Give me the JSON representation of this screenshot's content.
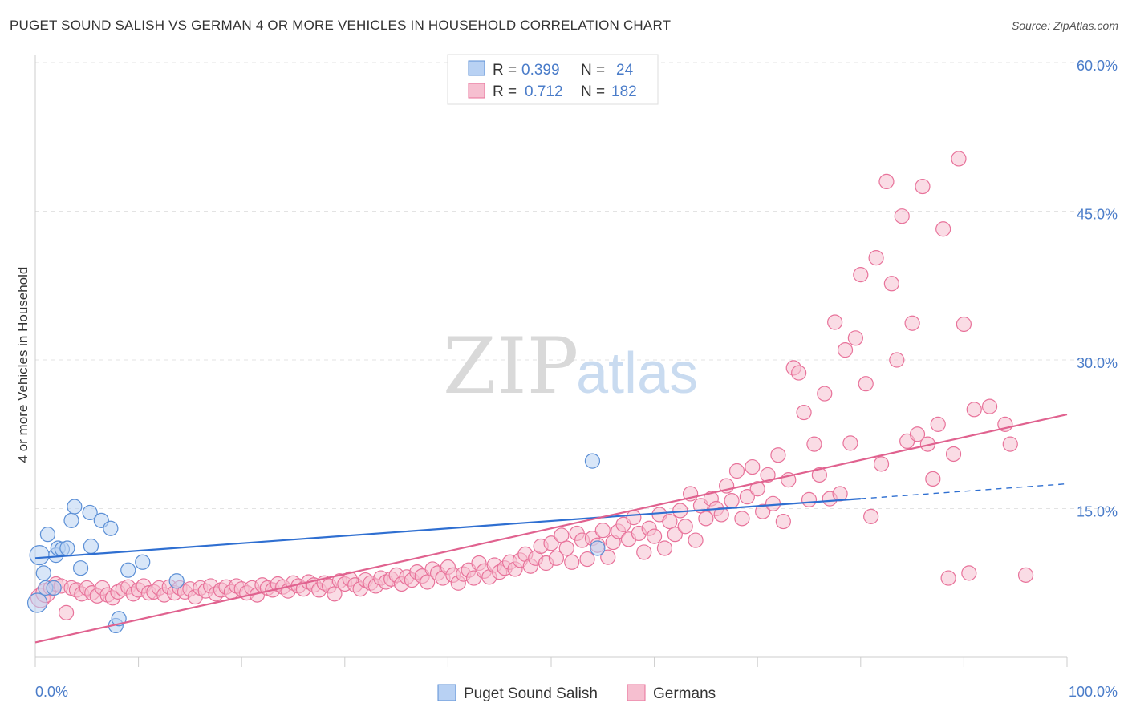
{
  "title": "PUGET SOUND SALISH VS GERMAN 4 OR MORE VEHICLES IN HOUSEHOLD CORRELATION CHART",
  "source": "Source: ZipAtlas.com",
  "watermark": {
    "zip": "ZIP",
    "atlas": "atlas"
  },
  "colors": {
    "blue": "#5b8fd6",
    "blue_fill": "#b8d1f3",
    "pink": "#e8729a",
    "pink_fill": "#f6bfd0",
    "blue_line": "#2f6fd1",
    "pink_line": "#e0628f"
  },
  "legend": {
    "rows": [
      {
        "r_label": "R =",
        "r_value": "0.399",
        "n_label": "N =",
        "n_value": "24"
      },
      {
        "r_label": "R =",
        "r_value": "0.712",
        "n_label": "N =",
        "n_value": "182"
      }
    ]
  },
  "chart_data": {
    "type": "scatter",
    "ylabel": "4 or more Vehicles in Household",
    "xlim": [
      0,
      100
    ],
    "ylim": [
      0,
      60
    ],
    "y_ticks": [
      15,
      30,
      45,
      60
    ],
    "y_tick_labels": [
      "15.0%",
      "30.0%",
      "45.0%",
      "60.0%"
    ],
    "x_tick_labels": [
      "0.0%",
      "100.0%"
    ],
    "series": [
      {
        "name": "Puget Sound Salish",
        "trend": {
          "x0": 0,
          "y0": 10.0,
          "x1": 80,
          "y1": 16.0,
          "dash_to_x": 100,
          "dash_to_y": 17.5
        },
        "points": [
          [
            0.2,
            5.5
          ],
          [
            0.4,
            10.3
          ],
          [
            0.8,
            8.5
          ],
          [
            1.0,
            7.0
          ],
          [
            1.2,
            12.4
          ],
          [
            1.8,
            7.0
          ],
          [
            2.0,
            10.3
          ],
          [
            2.2,
            11.0
          ],
          [
            2.6,
            10.9
          ],
          [
            3.1,
            11.0
          ],
          [
            3.5,
            13.8
          ],
          [
            3.8,
            15.2
          ],
          [
            4.4,
            9.0
          ],
          [
            5.3,
            14.6
          ],
          [
            5.4,
            11.2
          ],
          [
            6.4,
            13.8
          ],
          [
            7.3,
            13.0
          ],
          [
            7.8,
            3.2
          ],
          [
            8.1,
            3.9
          ],
          [
            9.0,
            8.8
          ],
          [
            10.4,
            9.6
          ],
          [
            13.7,
            7.7
          ],
          [
            54.0,
            19.8
          ],
          [
            54.5,
            11.0
          ]
        ]
      },
      {
        "name": "Germans",
        "trend": {
          "x0": 0,
          "y0": 1.5,
          "x1": 100,
          "y1": 24.5
        },
        "points": [
          [
            0.5,
            6.0
          ],
          [
            1.0,
            6.5
          ],
          [
            1.5,
            7.0
          ],
          [
            2.0,
            7.4
          ],
          [
            2.5,
            7.2
          ],
          [
            3.0,
            4.5
          ],
          [
            3.5,
            7.0
          ],
          [
            4.0,
            6.8
          ],
          [
            4.5,
            6.4
          ],
          [
            5.0,
            7.0
          ],
          [
            5.5,
            6.5
          ],
          [
            6.0,
            6.2
          ],
          [
            6.5,
            7.0
          ],
          [
            7.0,
            6.3
          ],
          [
            7.5,
            6.0
          ],
          [
            8.0,
            6.6
          ],
          [
            8.5,
            6.9
          ],
          [
            9.0,
            7.1
          ],
          [
            9.5,
            6.4
          ],
          [
            10.0,
            6.8
          ],
          [
            10.5,
            7.2
          ],
          [
            11.0,
            6.5
          ],
          [
            11.5,
            6.6
          ],
          [
            12.0,
            7.0
          ],
          [
            12.5,
            6.3
          ],
          [
            13.0,
            7.1
          ],
          [
            13.5,
            6.5
          ],
          [
            14.0,
            7.0
          ],
          [
            14.5,
            6.6
          ],
          [
            15.0,
            6.9
          ],
          [
            15.5,
            6.1
          ],
          [
            16.0,
            7.0
          ],
          [
            16.5,
            6.7
          ],
          [
            17.0,
            7.2
          ],
          [
            17.5,
            6.4
          ],
          [
            18.0,
            6.8
          ],
          [
            18.5,
            7.1
          ],
          [
            19.0,
            6.6
          ],
          [
            19.5,
            7.2
          ],
          [
            20.0,
            6.9
          ],
          [
            20.5,
            6.5
          ],
          [
            21.0,
            7.0
          ],
          [
            21.5,
            6.3
          ],
          [
            22.0,
            7.3
          ],
          [
            22.5,
            7.0
          ],
          [
            23.0,
            6.8
          ],
          [
            23.5,
            7.4
          ],
          [
            24.0,
            7.1
          ],
          [
            24.5,
            6.7
          ],
          [
            25.0,
            7.5
          ],
          [
            25.5,
            7.2
          ],
          [
            26.0,
            6.9
          ],
          [
            26.5,
            7.6
          ],
          [
            27.0,
            7.3
          ],
          [
            27.5,
            6.8
          ],
          [
            28.0,
            7.5
          ],
          [
            28.5,
            7.2
          ],
          [
            29.0,
            6.4
          ],
          [
            29.5,
            7.7
          ],
          [
            30.0,
            7.4
          ],
          [
            30.5,
            7.9
          ],
          [
            31.0,
            7.3
          ],
          [
            31.5,
            6.9
          ],
          [
            32.0,
            7.8
          ],
          [
            32.5,
            7.5
          ],
          [
            33.0,
            7.2
          ],
          [
            33.5,
            8.0
          ],
          [
            34.0,
            7.6
          ],
          [
            34.5,
            7.9
          ],
          [
            35.0,
            8.3
          ],
          [
            35.5,
            7.4
          ],
          [
            36.0,
            8.1
          ],
          [
            36.5,
            7.8
          ],
          [
            37.0,
            8.6
          ],
          [
            37.5,
            8.2
          ],
          [
            38.0,
            7.6
          ],
          [
            38.5,
            8.9
          ],
          [
            39.0,
            8.5
          ],
          [
            39.5,
            8.0
          ],
          [
            40.0,
            9.1
          ],
          [
            40.5,
            8.3
          ],
          [
            41.0,
            7.5
          ],
          [
            41.5,
            8.4
          ],
          [
            42.0,
            8.8
          ],
          [
            42.5,
            8.0
          ],
          [
            43.0,
            9.5
          ],
          [
            43.5,
            8.7
          ],
          [
            44.0,
            8.1
          ],
          [
            44.5,
            9.3
          ],
          [
            45.0,
            8.6
          ],
          [
            45.5,
            9.0
          ],
          [
            46.0,
            9.6
          ],
          [
            46.5,
            8.9
          ],
          [
            47.0,
            9.8
          ],
          [
            47.5,
            10.4
          ],
          [
            48.0,
            9.2
          ],
          [
            48.5,
            10.0
          ],
          [
            49.0,
            11.2
          ],
          [
            49.5,
            9.5
          ],
          [
            50.0,
            11.5
          ],
          [
            50.5,
            10.0
          ],
          [
            51.0,
            12.3
          ],
          [
            51.5,
            11.0
          ],
          [
            52.0,
            9.6
          ],
          [
            52.5,
            12.5
          ],
          [
            53.0,
            11.8
          ],
          [
            53.5,
            9.9
          ],
          [
            54.0,
            12.0
          ],
          [
            54.5,
            11.3
          ],
          [
            55.0,
            12.8
          ],
          [
            55.5,
            10.1
          ],
          [
            56.0,
            11.6
          ],
          [
            56.5,
            12.7
          ],
          [
            57.0,
            13.4
          ],
          [
            57.5,
            11.9
          ],
          [
            58.0,
            14.1
          ],
          [
            58.5,
            12.5
          ],
          [
            59.0,
            10.6
          ],
          [
            59.5,
            13.0
          ],
          [
            60.0,
            12.2
          ],
          [
            60.5,
            14.4
          ],
          [
            61.0,
            11.0
          ],
          [
            61.5,
            13.7
          ],
          [
            62.0,
            12.4
          ],
          [
            62.5,
            14.8
          ],
          [
            63.0,
            13.2
          ],
          [
            63.5,
            16.5
          ],
          [
            64.0,
            11.8
          ],
          [
            64.5,
            15.3
          ],
          [
            65.0,
            14.0
          ],
          [
            65.5,
            16.0
          ],
          [
            66.0,
            15.0
          ],
          [
            66.5,
            14.4
          ],
          [
            67.0,
            17.3
          ],
          [
            67.5,
            15.8
          ],
          [
            68.0,
            18.8
          ],
          [
            68.5,
            14.0
          ],
          [
            69.0,
            16.2
          ],
          [
            69.5,
            19.2
          ],
          [
            70.0,
            17.0
          ],
          [
            70.5,
            14.7
          ],
          [
            71.0,
            18.4
          ],
          [
            71.5,
            15.5
          ],
          [
            72.0,
            20.4
          ],
          [
            72.5,
            13.7
          ],
          [
            73.0,
            17.9
          ],
          [
            73.5,
            29.2
          ],
          [
            74.0,
            28.7
          ],
          [
            74.5,
            24.7
          ],
          [
            75.0,
            15.9
          ],
          [
            75.5,
            21.5
          ],
          [
            76.0,
            18.4
          ],
          [
            76.5,
            26.6
          ],
          [
            77.0,
            16.0
          ],
          [
            77.5,
            33.8
          ],
          [
            78.0,
            16.5
          ],
          [
            78.5,
            31.0
          ],
          [
            79.0,
            21.6
          ],
          [
            79.5,
            32.2
          ],
          [
            80.0,
            38.6
          ],
          [
            80.5,
            27.6
          ],
          [
            81.0,
            14.2
          ],
          [
            81.5,
            40.3
          ],
          [
            82.0,
            19.5
          ],
          [
            82.5,
            48.0
          ],
          [
            83.0,
            37.7
          ],
          [
            83.5,
            30.0
          ],
          [
            84.0,
            44.5
          ],
          [
            84.5,
            21.8
          ],
          [
            85.0,
            33.7
          ],
          [
            85.5,
            22.5
          ],
          [
            86.0,
            47.5
          ],
          [
            86.5,
            21.5
          ],
          [
            87.0,
            18.0
          ],
          [
            87.5,
            23.5
          ],
          [
            88.0,
            43.2
          ],
          [
            88.5,
            8.0
          ],
          [
            89.0,
            20.5
          ],
          [
            89.5,
            50.3
          ],
          [
            90.0,
            33.6
          ],
          [
            90.5,
            8.5
          ],
          [
            91.0,
            25.0
          ],
          [
            92.5,
            25.3
          ],
          [
            94.0,
            23.5
          ],
          [
            94.5,
            21.5
          ],
          [
            96.0,
            8.3
          ]
        ]
      }
    ]
  },
  "bottom_legend": [
    "Puget Sound Salish",
    "Germans"
  ]
}
